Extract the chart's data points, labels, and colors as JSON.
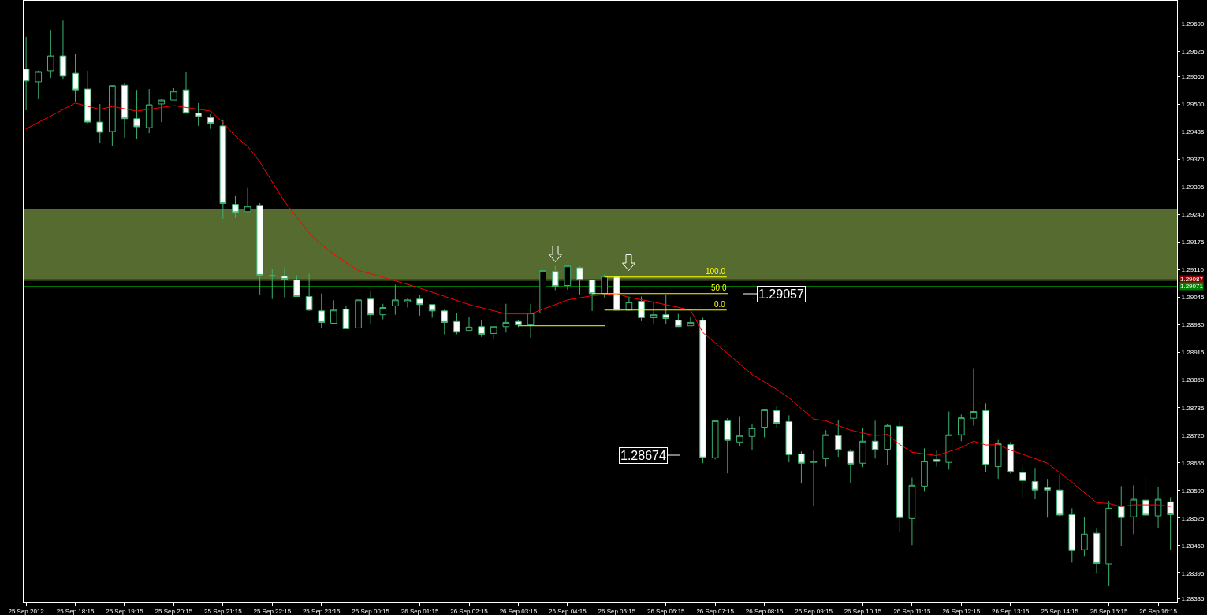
{
  "chart_data": {
    "type": "candlestick",
    "color": "#3cb371",
    "grid": false,
    "x": [
      "2012-09-25T17:15",
      "2012-09-25T17:30",
      "2012-09-25T17:45",
      "2012-09-25T18:00",
      "2012-09-25T18:15",
      "2012-09-25T18:30",
      "2012-09-25T18:45",
      "2012-09-25T19:00",
      "2012-09-25T19:15",
      "2012-09-25T19:30",
      "2012-09-25T19:45",
      "2012-09-25T20:00",
      "2012-09-25T20:15",
      "2012-09-25T20:30",
      "2012-09-25T20:45",
      "2012-09-25T21:00",
      "2012-09-25T21:15",
      "2012-09-25T21:30",
      "2012-09-25T21:45",
      "2012-09-25T22:00",
      "2012-09-25T22:15",
      "2012-09-25T22:30",
      "2012-09-25T22:45",
      "2012-09-25T23:00",
      "2012-09-25T23:15",
      "2012-09-25T23:30",
      "2012-09-25T23:45",
      "2012-09-26T00:00",
      "2012-09-26T00:15",
      "2012-09-26T00:30",
      "2012-09-26T00:45",
      "2012-09-26T01:00",
      "2012-09-26T01:15",
      "2012-09-26T01:30",
      "2012-09-26T01:45",
      "2012-09-26T02:00",
      "2012-09-26T02:15",
      "2012-09-26T02:30",
      "2012-09-26T02:45",
      "2012-09-26T03:00",
      "2012-09-26T03:15",
      "2012-09-26T03:30",
      "2012-09-26T03:45",
      "2012-09-26T04:00",
      "2012-09-26T04:15",
      "2012-09-26T04:30",
      "2012-09-26T04:45",
      "2012-09-26T05:00",
      "2012-09-26T05:15",
      "2012-09-26T05:30",
      "2012-09-26T05:45",
      "2012-09-26T06:00",
      "2012-09-26T06:15",
      "2012-09-26T06:30",
      "2012-09-26T06:45",
      "2012-09-26T07:00",
      "2012-09-26T07:15",
      "2012-09-26T07:30",
      "2012-09-26T07:45",
      "2012-09-26T08:00",
      "2012-09-26T08:15",
      "2012-09-26T08:30",
      "2012-09-26T08:45",
      "2012-09-26T09:00",
      "2012-09-26T09:15",
      "2012-09-26T09:30",
      "2012-09-26T09:45",
      "2012-09-26T10:00",
      "2012-09-26T10:15",
      "2012-09-26T10:30",
      "2012-09-26T10:45",
      "2012-09-26T11:00",
      "2012-09-26T11:15",
      "2012-09-26T11:30",
      "2012-09-26T11:45",
      "2012-09-26T12:00",
      "2012-09-26T12:15",
      "2012-09-26T12:30",
      "2012-09-26T12:45",
      "2012-09-26T13:00",
      "2012-09-26T13:15",
      "2012-09-26T13:30",
      "2012-09-26T13:45",
      "2012-09-26T14:00",
      "2012-09-26T14:15",
      "2012-09-26T14:30",
      "2012-09-26T14:45",
      "2012-09-26T15:00",
      "2012-09-26T15:15",
      "2012-09-26T15:30",
      "2012-09-26T15:45",
      "2012-09-26T16:00",
      "2012-09-26T16:15",
      "2012-09-26T16:30"
    ],
    "ohlc": [
      [
        1.29583,
        1.29659,
        1.29486,
        1.29555
      ],
      [
        1.29553,
        1.29579,
        1.29512,
        1.29577
      ],
      [
        1.29579,
        1.29675,
        1.29562,
        1.29614
      ],
      [
        1.29614,
        1.29697,
        1.2956,
        1.29566
      ],
      [
        1.29573,
        1.29618,
        1.29507,
        1.29534
      ],
      [
        1.29536,
        1.29579,
        1.29453,
        1.29458
      ],
      [
        1.29458,
        1.29501,
        1.29408,
        1.29434
      ],
      [
        1.29436,
        1.29545,
        1.29401,
        1.29544
      ],
      [
        1.29545,
        1.29551,
        1.29421,
        1.29466
      ],
      [
        1.29466,
        1.29534,
        1.29419,
        1.29447
      ],
      [
        1.29445,
        1.29536,
        1.29432,
        1.29499
      ],
      [
        1.29501,
        1.29512,
        1.29458,
        1.2951
      ],
      [
        1.2951,
        1.29538,
        1.2951,
        1.29531
      ],
      [
        1.29534,
        1.29575,
        1.29479,
        1.29479
      ],
      [
        1.29479,
        1.29503,
        1.29449,
        1.29471
      ],
      [
        1.29469,
        1.29477,
        1.29442,
        1.29455
      ],
      [
        1.29449,
        1.29464,
        1.2923,
        1.29266
      ],
      [
        1.29264,
        1.29284,
        1.29232,
        1.29245
      ],
      [
        1.29247,
        1.29303,
        1.29247,
        1.2926
      ],
      [
        1.29262,
        1.29267,
        1.29052,
        1.29097
      ],
      [
        1.29095,
        1.29112,
        1.29041,
        1.29097
      ],
      [
        1.29095,
        1.29114,
        1.29045,
        1.29088
      ],
      [
        1.29086,
        1.29097,
        1.29047,
        1.29047
      ],
      [
        1.29047,
        1.29101,
        1.29013,
        1.29015
      ],
      [
        1.29013,
        1.29054,
        1.28973,
        1.28986
      ],
      [
        1.28984,
        1.29038,
        1.28984,
        1.29015
      ],
      [
        1.29017,
        1.29025,
        1.28971,
        1.28971
      ],
      [
        1.28973,
        1.29039,
        1.28973,
        1.29039
      ],
      [
        1.29041,
        1.2906,
        1.28982,
        1.29004
      ],
      [
        1.29004,
        1.2903,
        1.28993,
        1.29021
      ],
      [
        1.29025,
        1.29075,
        1.29004,
        1.29039
      ],
      [
        1.29034,
        1.29043,
        1.29021,
        1.29039
      ],
      [
        1.29041,
        1.29051,
        1.29002,
        1.29028
      ],
      [
        1.29028,
        1.29028,
        1.28997,
        1.29013
      ],
      [
        1.29013,
        1.29017,
        1.28958,
        1.28986
      ],
      [
        1.28988,
        1.29008,
        1.28958,
        1.28963
      ],
      [
        1.28967,
        1.28999,
        1.28967,
        1.28975
      ],
      [
        1.28976,
        1.28991,
        1.28952,
        1.28958
      ],
      [
        1.2896,
        1.28976,
        1.28947,
        1.28976
      ],
      [
        1.28976,
        1.2903,
        1.28962,
        1.28986
      ],
      [
        1.28988,
        1.28991,
        1.28975,
        1.2898
      ],
      [
        1.2898,
        1.2903,
        1.2895,
        1.29008
      ],
      [
        1.29008,
        1.29108,
        1.29008,
        1.29108
      ],
      [
        1.29106,
        1.29119,
        1.29062,
        1.29071
      ],
      [
        1.29073,
        1.29119,
        1.29063,
        1.29119
      ],
      [
        1.29115,
        1.29119,
        1.29052,
        1.29086
      ],
      [
        1.29086,
        1.29086,
        1.29013,
        1.29054
      ],
      [
        1.29054,
        1.29099,
        1.29045,
        1.29095
      ],
      [
        1.29093,
        1.29099,
        1.29015,
        1.29015
      ],
      [
        1.29015,
        1.29047,
        1.29015,
        1.29034
      ],
      [
        1.29036,
        1.29047,
        1.28989,
        1.28997
      ],
      [
        1.28997,
        1.29034,
        1.28982,
        1.29004
      ],
      [
        1.29004,
        1.29052,
        1.28982,
        1.28995
      ],
      [
        1.28991,
        1.29006,
        1.28976,
        1.28976
      ],
      [
        1.28978,
        1.28999,
        1.28978,
        1.28986
      ],
      [
        1.28991,
        1.28997,
        1.28654,
        1.28667
      ],
      [
        1.28667,
        1.28754,
        1.28663,
        1.28754
      ],
      [
        1.28754,
        1.2876,
        1.2863,
        1.28708
      ],
      [
        1.28704,
        1.28765,
        1.28695,
        1.28719
      ],
      [
        1.28717,
        1.28747,
        1.28685,
        1.28737
      ],
      [
        1.28739,
        1.28782,
        1.28715,
        1.2878
      ],
      [
        1.28778,
        1.28789,
        1.28737,
        1.28748
      ],
      [
        1.28752,
        1.28767,
        1.28656,
        1.28674
      ],
      [
        1.28676,
        1.28682,
        1.28606,
        1.28654
      ],
      [
        1.28656,
        1.28684,
        1.28552,
        1.28658
      ],
      [
        1.28665,
        1.28732,
        1.28646,
        1.28721
      ],
      [
        1.28719,
        1.28756,
        1.28669,
        1.28685
      ],
      [
        1.28682,
        1.28687,
        1.28606,
        1.28652
      ],
      [
        1.28654,
        1.28737,
        1.28645,
        1.28706
      ],
      [
        1.28706,
        1.28754,
        1.28665,
        1.28685
      ],
      [
        1.28687,
        1.28747,
        1.2865,
        1.28743
      ],
      [
        1.28741,
        1.28752,
        1.28491,
        1.28526
      ],
      [
        1.28524,
        1.2862,
        1.28461,
        1.28602
      ],
      [
        1.286,
        1.28689,
        1.28587,
        1.28659
      ],
      [
        1.28663,
        1.28684,
        1.28646,
        1.28658
      ],
      [
        1.28656,
        1.28776,
        1.28639,
        1.28721
      ],
      [
        1.28721,
        1.28769,
        1.28706,
        1.28761
      ],
      [
        1.2876,
        1.28878,
        1.28743,
        1.28776
      ],
      [
        1.28778,
        1.28795,
        1.28633,
        1.2865
      ],
      [
        1.28646,
        1.28709,
        1.28617,
        1.287
      ],
      [
        1.28698,
        1.28704,
        1.2863,
        1.28633
      ],
      [
        1.28632,
        1.2865,
        1.2857,
        1.28613
      ],
      [
        1.28611,
        1.28643,
        1.28569,
        1.28591
      ],
      [
        1.28596,
        1.28617,
        1.28526,
        1.28591
      ],
      [
        1.28591,
        1.28628,
        1.28528,
        1.28532
      ],
      [
        1.28533,
        1.28548,
        1.2842,
        1.28448
      ],
      [
        1.2845,
        1.28528,
        1.28435,
        1.28487
      ],
      [
        1.28489,
        1.285,
        1.28394,
        1.28418
      ],
      [
        1.28417,
        1.28565,
        1.28365,
        1.28548
      ],
      [
        1.28552,
        1.286,
        1.28459,
        1.28526
      ],
      [
        1.28528,
        1.28602,
        1.28487,
        1.28569
      ],
      [
        1.28567,
        1.28626,
        1.28528,
        1.28532
      ],
      [
        1.2853,
        1.28598,
        1.28502,
        1.28569
      ],
      [
        1.28563,
        1.28574,
        1.2845,
        1.28533
      ]
    ],
    "series": [
      {
        "type": "line",
        "color": "#ff0000",
        "x": [
          "2012-09-25T17:15",
          "2012-09-25T18:15",
          "2012-09-25T18:45",
          "2012-09-25T19:00",
          "2012-09-25T19:30",
          "2012-09-25T20:15",
          "2012-09-25T21:00",
          "2012-09-25T21:15",
          "2012-09-25T21:30",
          "2012-09-25T21:45",
          "2012-09-25T22:00",
          "2012-09-25T22:15",
          "2012-09-25T22:30",
          "2012-09-25T22:45",
          "2012-09-25T23:00",
          "2012-09-25T23:15",
          "2012-09-25T23:30",
          "2012-09-25T23:45",
          "2012-09-26T00:00",
          "2012-09-26T00:15",
          "2012-09-26T01:15",
          "2012-09-26T02:15",
          "2012-09-26T03:00",
          "2012-09-26T03:30",
          "2012-09-26T03:45",
          "2012-09-26T04:15",
          "2012-09-26T04:45",
          "2012-09-26T05:15",
          "2012-09-26T05:30",
          "2012-09-26T06:00",
          "2012-09-26T06:45",
          "2012-09-26T07:00",
          "2012-09-26T07:30",
          "2012-09-26T08:00",
          "2012-09-26T08:30",
          "2012-09-26T08:45",
          "2012-09-26T09:15",
          "2012-09-26T09:30",
          "2012-09-26T10:00",
          "2012-09-26T10:30",
          "2012-09-26T10:45",
          "2012-09-26T11:00",
          "2012-09-26T11:15",
          "2012-09-26T11:45",
          "2012-09-26T12:15",
          "2012-09-26T12:30",
          "2012-09-26T12:45",
          "2012-09-26T13:00",
          "2012-09-26T13:15",
          "2012-09-26T13:45",
          "2012-09-26T14:00",
          "2012-09-26T14:15",
          "2012-09-26T14:30",
          "2012-09-26T15:00",
          "2012-09-26T15:15",
          "2012-09-26T15:30",
          "2012-09-26T15:45",
          "2012-09-26T16:15",
          "2012-09-26T16:30"
        ],
        "values": [
          1.29442,
          1.29503,
          1.29488,
          1.29495,
          1.29484,
          1.29497,
          1.29484,
          1.29457,
          1.29425,
          1.29401,
          1.29364,
          1.29317,
          1.29271,
          1.29234,
          1.29197,
          1.29169,
          1.29147,
          1.29127,
          1.29108,
          1.29101,
          1.29067,
          1.29028,
          1.29006,
          1.29006,
          1.29017,
          1.29039,
          1.29049,
          1.29054,
          1.29045,
          1.29034,
          1.29015,
          1.28962,
          1.28913,
          1.28863,
          1.28828,
          1.28808,
          1.28758,
          1.28754,
          1.28732,
          1.28719,
          1.28722,
          1.28698,
          1.2868,
          1.28672,
          1.28691,
          1.28706,
          1.28697,
          1.28698,
          1.28685,
          1.28665,
          1.28654,
          1.28632,
          1.28609,
          1.28561,
          1.28559,
          1.28552,
          1.28556,
          1.28556,
          1.28552
        ]
      },
      {
        "type": "line",
        "color": "#ffff00",
        "x": [
          "2012-09-26T03:15",
          "2012-09-26T05:01"
        ],
        "values": [
          1.28978,
          1.28978
        ]
      },
      {
        "type": "line",
        "name": "100.0",
        "color": "#ffff00",
        "x": [
          "2012-09-26T05:00",
          "2012-09-26T07:29"
        ],
        "values": [
          1.29093,
          1.29093
        ]
      },
      {
        "type": "line",
        "name": "50.0",
        "color": "#ffff00",
        "x": [
          "2012-09-26T04:45",
          "2012-09-26T07:31"
        ],
        "values": [
          1.29054,
          1.29054
        ]
      },
      {
        "type": "line",
        "name": "0.0",
        "color": "#ffff00",
        "x": [
          "2012-09-26T05:00",
          "2012-09-26T07:29"
        ],
        "values": [
          1.29015,
          1.29015
        ]
      }
    ],
    "xlim": [
      "2012-09-25T17:12",
      "2012-09-26T16:38"
    ],
    "xticks": [
      {
        "value": "2012-09-25T17:15",
        "label": "25 Sep 2012"
      },
      {
        "value": "2012-09-25T18:15",
        "label": "25 Sep 18:15"
      },
      {
        "value": "2012-09-25T19:15",
        "label": "25 Sep 19:15"
      },
      {
        "value": "2012-09-25T20:15",
        "label": "25 Sep 20:15"
      },
      {
        "value": "2012-09-25T21:15",
        "label": "25 Sep 21:15"
      },
      {
        "value": "2012-09-25T22:15",
        "label": "25 Sep 22:15"
      },
      {
        "value": "2012-09-25T23:15",
        "label": "25 Sep 23:15"
      },
      {
        "value": "2012-09-26T00:15",
        "label": "26 Sep 00:15"
      },
      {
        "value": "2012-09-26T01:15",
        "label": "26 Sep 01:15"
      },
      {
        "value": "2012-09-26T02:15",
        "label": "26 Sep 02:15"
      },
      {
        "value": "2012-09-26T03:15",
        "label": "26 Sep 03:15"
      },
      {
        "value": "2012-09-26T04:15",
        "label": "26 Sep 04:15"
      },
      {
        "value": "2012-09-26T05:15",
        "label": "26 Sep 05:15"
      },
      {
        "value": "2012-09-26T06:15",
        "label": "26 Sep 06:15"
      },
      {
        "value": "2012-09-26T07:15",
        "label": "26 Sep 07:15"
      },
      {
        "value": "2012-09-26T08:15",
        "label": "26 Sep 08:15"
      },
      {
        "value": "2012-09-26T09:15",
        "label": "26 Sep 09:15"
      },
      {
        "value": "2012-09-26T10:15",
        "label": "26 Sep 10:15"
      },
      {
        "value": "2012-09-26T11:15",
        "label": "26 Sep 11:15"
      },
      {
        "value": "2012-09-26T12:15",
        "label": "26 Sep 12:15"
      },
      {
        "value": "2012-09-26T13:15",
        "label": "26 Sep 13:15"
      },
      {
        "value": "2012-09-26T14:15",
        "label": "26 Sep 14:15"
      },
      {
        "value": "2012-09-26T15:15",
        "label": "26 Sep 15:15"
      },
      {
        "value": "2012-09-26T16:15",
        "label": "26 Sep 16:15"
      }
    ],
    "ylim": [
      1.28326,
      1.29744
    ],
    "yticks": [
      {
        "value": 1.2969,
        "label": "1.29690"
      },
      1.29625,
      1.29565,
      {
        "value": 1.295,
        "label": "1.29500"
      },
      1.29435,
      {
        "value": 1.2937,
        "label": "1.29370"
      },
      1.29305,
      {
        "value": 1.2924,
        "label": "1.29240"
      },
      1.29175,
      {
        "value": 1.2911,
        "label": "1.29110"
      },
      1.29045,
      {
        "value": 1.2898,
        "label": "1.28980"
      },
      1.28915,
      {
        "value": 1.2885,
        "label": "1.28850"
      },
      1.28785,
      {
        "value": 1.2872,
        "label": "1.28720"
      },
      1.28655,
      {
        "value": 1.2859,
        "label": "1.28590"
      },
      1.28525,
      {
        "value": 1.2846,
        "label": "1.28460"
      },
      1.28395,
      1.28335
    ],
    "bands": [
      {
        "axis": "y",
        "from": 1.29084,
        "to": 1.29253,
        "color": "#556b2f"
      }
    ],
    "ref_lines": [
      {
        "axis": "y",
        "value": 1.29087,
        "label": "1.29087",
        "color": "#8b0000"
      },
      {
        "axis": "y",
        "value": 1.29071,
        "label": "1.29071",
        "color": "#008000"
      }
    ],
    "annotations": [
      "1.29057",
      "1.28674"
    ]
  }
}
